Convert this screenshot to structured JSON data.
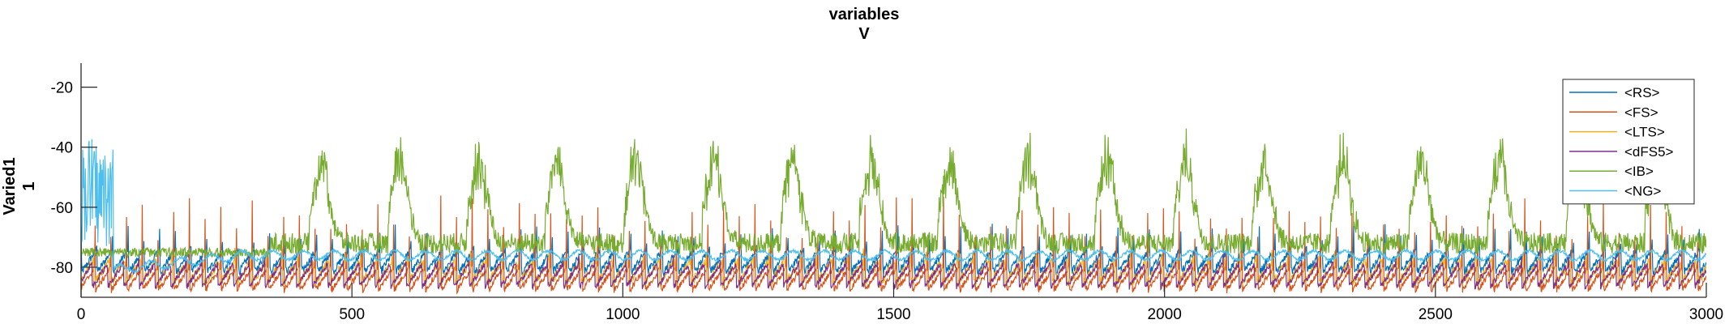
{
  "figure": {
    "title_line1": "variables",
    "title_line2": "V",
    "ylabel_line1": "Varied1",
    "ylabel_line2": "1"
  },
  "chart_data": {
    "type": "line",
    "title": "variables V",
    "xlabel": "",
    "ylabel": "Varied1 1",
    "xlim": [
      0,
      3000
    ],
    "ylim": [
      -90,
      -12
    ],
    "xticks": [
      0,
      500,
      1000,
      1500,
      2000,
      2500,
      3000
    ],
    "yticks": [
      -80,
      -60,
      -40,
      -20
    ],
    "grid": false,
    "legend_placement": "top-right",
    "series": [
      {
        "name": "<RS>",
        "color": "#0072bd",
        "baseline": -78,
        "spike_peak": -62,
        "period": 29,
        "noise": 2.5
      },
      {
        "name": "<FS>",
        "color": "#d95319",
        "baseline": -84,
        "spike_peak": -42,
        "period": 29,
        "noise": 2.0
      },
      {
        "name": "<LTS>",
        "color": "#edb120",
        "baseline": -82,
        "spike_peak": -58,
        "period": 29,
        "noise": 3.0
      },
      {
        "name": "<dFS5>",
        "color": "#7e2f8e",
        "baseline": -83,
        "spike_peak": -35,
        "period": 29,
        "noise": 2.0
      },
      {
        "name": "<IB>",
        "color": "#77ac30",
        "baseline": -72,
        "spike_peak": -40,
        "period": 145,
        "noise": 3.5
      },
      {
        "name": "<NG>",
        "color": "#4dbeee",
        "baseline": -76,
        "spike_peak": -74,
        "period": 60,
        "noise": 1.0
      }
    ]
  }
}
